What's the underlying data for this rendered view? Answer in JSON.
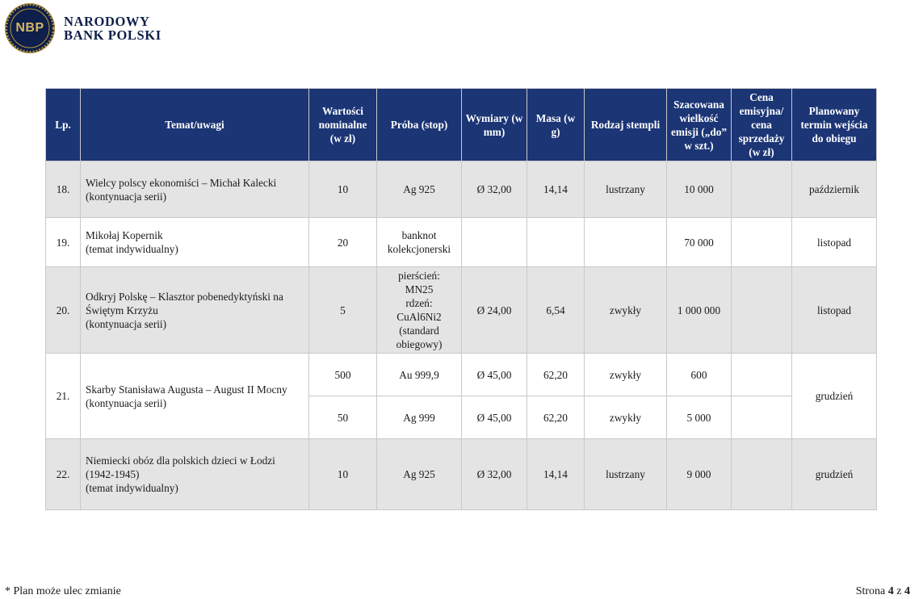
{
  "header": {
    "logo_text": "NBP",
    "brand_line1": "NARODOWY",
    "brand_line2": "BANK POLSKI",
    "colors": {
      "navy": "#0d1f4a",
      "gold": "#d6b765",
      "table_header": "#1b3575",
      "row_shade": "#e4e4e4"
    }
  },
  "table": {
    "columns": [
      "Lp.",
      "Temat/uwagi",
      "Wartości nominalne (w zł)",
      "Próba (stop)",
      "Wymiary (w mm)",
      "Masa (w g)",
      "Rodzaj stempli",
      "Szacowana wielkość emisji („do” w szt.)",
      "Cena emisyjna/ cena sprzedaży (w zł)",
      "Planowany termin wejścia do obiegu"
    ],
    "rows": [
      {
        "lp": "18.",
        "topic": [
          "Wielcy polscy ekonomiści – Michał Kalecki",
          "(kontynuacja serii)"
        ],
        "nominal": "10",
        "proba": [
          "Ag 925"
        ],
        "wymiary": "Ø 32,00",
        "masa": "14,14",
        "stempel": "lustrzany",
        "emisja": "10 000",
        "cena": "",
        "termin": "październik"
      },
      {
        "lp": "19.",
        "topic": [
          "Mikołaj Kopernik",
          "(temat indywidualny)"
        ],
        "nominal": "20",
        "proba": [
          "banknot",
          "kolekcjonerski"
        ],
        "wymiary": "",
        "masa": "",
        "stempel": "",
        "emisja": "70 000",
        "cena": "",
        "termin": "listopad"
      },
      {
        "lp": "20.",
        "topic": [
          "Odkryj Polskę – Klasztor pobenedyktyński na Świętym Krzyżu",
          "(kontynuacja serii)"
        ],
        "nominal": "5",
        "proba": [
          "pierścień:",
          "MN25",
          "rdzeń:",
          "CuAl6Ni2",
          "(standard",
          "obiegowy)"
        ],
        "wymiary": "Ø 24,00",
        "masa": "6,54",
        "stempel": "zwykły",
        "emisja": "1 000 000",
        "cena": "",
        "termin": "listopad"
      },
      {
        "lp": "21.",
        "topic": [
          "Skarby Stanisława Augusta – August II Mocny",
          "(kontynuacja serii)"
        ],
        "termin": "grudzień",
        "variants": [
          {
            "nominal": "500",
            "proba": "Au 999,9",
            "wymiary": "Ø 45,00",
            "masa": "62,20",
            "stempel": "zwykły",
            "emisja": "600",
            "cena": ""
          },
          {
            "nominal": "50",
            "proba": "Ag 999",
            "wymiary": "Ø 45,00",
            "masa": "62,20",
            "stempel": "zwykły",
            "emisja": "5 000",
            "cena": ""
          }
        ]
      },
      {
        "lp": "22.",
        "topic": [
          "Niemiecki obóz dla polskich dzieci w Łodzi",
          "(1942-1945)",
          "(temat indywidualny)"
        ],
        "nominal": "10",
        "proba": [
          "Ag 925"
        ],
        "wymiary": "Ø 32,00",
        "masa": "14,14",
        "stempel": "lustrzany",
        "emisja": "9 000",
        "cena": "",
        "termin": "grudzień"
      }
    ]
  },
  "footer": {
    "note": "* Plan może ulec zmianie",
    "page_prefix": "Strona ",
    "page_current": "4",
    "page_sep": " z ",
    "page_total": "4"
  }
}
